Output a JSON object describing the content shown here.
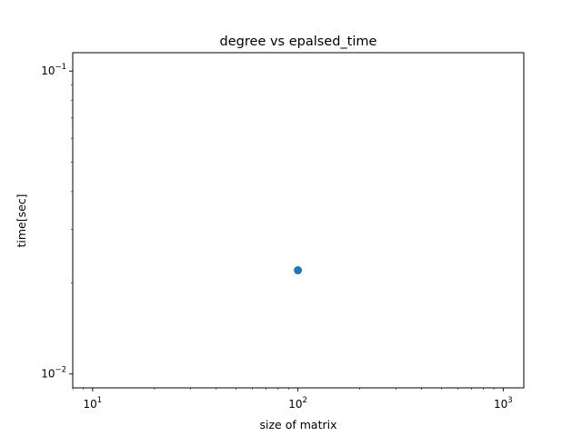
{
  "chart_data": {
    "type": "scatter",
    "title": "degree vs epalsed_time",
    "xlabel": "size of matrix",
    "ylabel": "time[sec]",
    "xscale": "log",
    "yscale": "log",
    "xlim": [
      8,
      1260
    ],
    "ylim": [
      0.009,
      0.115
    ],
    "x_ticks": [
      {
        "value": 10,
        "base": "10",
        "exp": "1"
      },
      {
        "value": 100,
        "base": "10",
        "exp": "2"
      },
      {
        "value": 1000,
        "base": "10",
        "exp": "3"
      }
    ],
    "y_ticks": [
      {
        "value": 0.01,
        "base": "10",
        "exp": "−2"
      },
      {
        "value": 0.1,
        "base": "10",
        "exp": "−1"
      }
    ],
    "series": [
      {
        "name": "",
        "color": "#1f77b4",
        "points": [
          {
            "x": 100,
            "y": 0.022
          }
        ]
      }
    ]
  }
}
